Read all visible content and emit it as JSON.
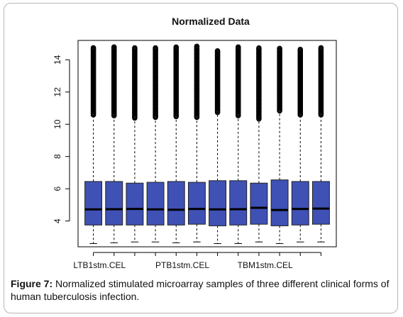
{
  "chart_data": {
    "type": "boxplot",
    "title": "Normalized Data",
    "xlabel": "",
    "ylabel": "",
    "ylim": [
      2.4,
      15.2
    ],
    "yticks": [
      4,
      6,
      8,
      10,
      12,
      14
    ],
    "tick_labels_shown": [
      "LTB1stm.CEL",
      "PTB1stm.CEL",
      "TBM1stm.CEL"
    ],
    "box_color": "#3f51b5",
    "series": [
      {
        "q1": 3.75,
        "median": 4.72,
        "q3": 6.45,
        "whisker_low": 2.6,
        "whisker_high": 10.45,
        "outlier_max": 14.75
      },
      {
        "q1": 3.75,
        "median": 4.73,
        "q3": 6.45,
        "whisker_low": 2.65,
        "whisker_high": 10.4,
        "outlier_max": 14.8
      },
      {
        "q1": 3.75,
        "median": 4.75,
        "q3": 6.35,
        "whisker_low": 2.7,
        "whisker_high": 10.25,
        "outlier_max": 14.75
      },
      {
        "q1": 3.75,
        "median": 4.72,
        "q3": 6.4,
        "whisker_low": 2.7,
        "whisker_high": 10.3,
        "outlier_max": 14.75
      },
      {
        "q1": 3.75,
        "median": 4.7,
        "q3": 6.45,
        "whisker_low": 2.65,
        "whisker_high": 10.35,
        "outlier_max": 14.8
      },
      {
        "q1": 3.8,
        "median": 4.75,
        "q3": 6.4,
        "whisker_low": 2.7,
        "whisker_high": 10.3,
        "outlier_max": 14.85
      },
      {
        "q1": 3.7,
        "median": 4.72,
        "q3": 6.5,
        "whisker_low": 2.6,
        "whisker_high": 10.6,
        "outlier_max": 14.6
      },
      {
        "q1": 3.75,
        "median": 4.73,
        "q3": 6.5,
        "whisker_low": 2.6,
        "whisker_high": 10.4,
        "outlier_max": 14.8
      },
      {
        "q1": 3.8,
        "median": 4.82,
        "q3": 6.35,
        "whisker_low": 2.7,
        "whisker_high": 10.2,
        "outlier_max": 14.75
      },
      {
        "q1": 3.7,
        "median": 4.68,
        "q3": 6.55,
        "whisker_low": 2.6,
        "whisker_high": 10.7,
        "outlier_max": 14.75
      },
      {
        "q1": 3.75,
        "median": 4.75,
        "q3": 6.45,
        "whisker_low": 2.7,
        "whisker_high": 10.45,
        "outlier_max": 14.65
      },
      {
        "q1": 3.8,
        "median": 4.77,
        "q3": 6.45,
        "whisker_low": 2.7,
        "whisker_high": 10.45,
        "outlier_max": 14.75
      }
    ]
  },
  "caption": {
    "label": "Figure 7:",
    "text": " Normalized stimulated microarray samples of three different clinical forms of human tuberculosis infection."
  }
}
